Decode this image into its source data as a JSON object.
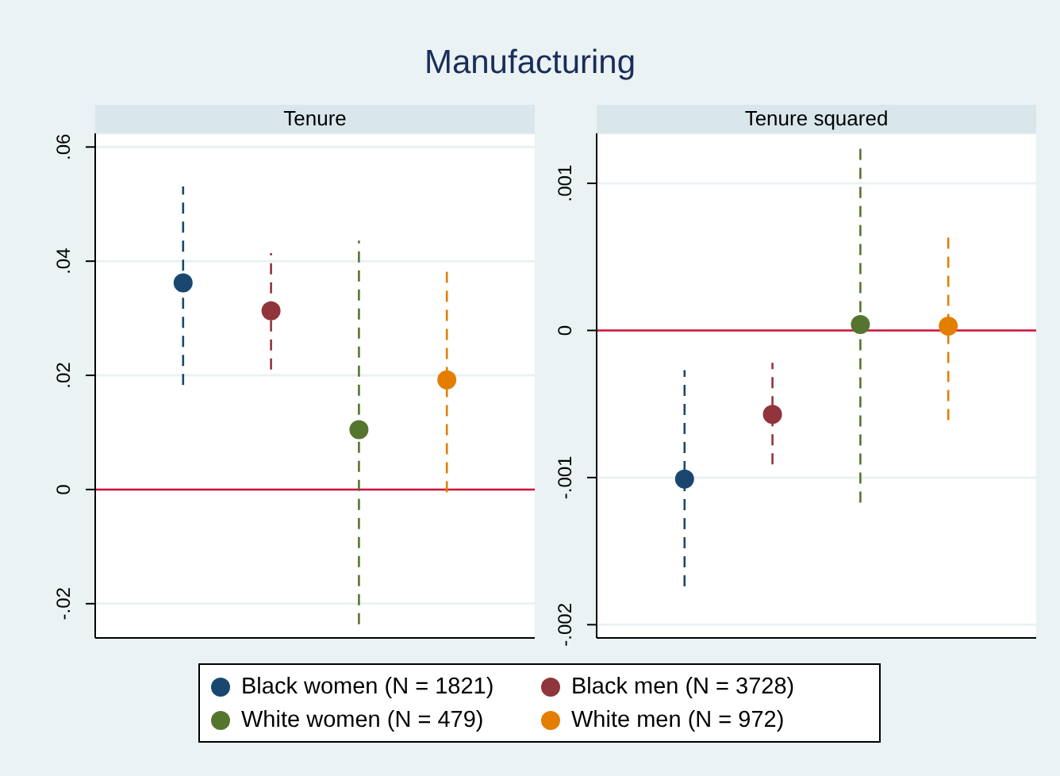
{
  "chart_data": [
    {
      "type": "scatter",
      "title": "Tenure",
      "annotations": [
        "Manufacturing"
      ],
      "categories": [
        null,
        null,
        null,
        null
      ],
      "series": [
        {
          "name": "Black women (N = 1821)",
          "color": "#1a476f",
          "values": [
            0.0362,
            null,
            null,
            null
          ],
          "errors": [
            [
              0.0183,
              0.0531
            ],
            null,
            null,
            null
          ]
        },
        {
          "name": "Black men (N = 3728)",
          "color": "#90353b",
          "values": [
            null,
            0.0313,
            null,
            null
          ],
          "errors": [
            null,
            [
              0.021,
              0.0414
            ],
            null,
            null
          ]
        },
        {
          "name": "White women (N = 479)",
          "color": "#55752f",
          "values": [
            null,
            null,
            0.0105,
            null
          ],
          "errors": [
            null,
            null,
            [
              -0.0236,
              0.0436
            ],
            null
          ]
        },
        {
          "name": "White men (N = 972)",
          "color": "#e37e00",
          "values": [
            null,
            null,
            null,
            0.0192
          ],
          "errors": [
            null,
            null,
            null,
            [
              -0.0005,
              0.0385
            ]
          ]
        }
      ],
      "ylim": [
        -0.026,
        0.0624
      ],
      "yticks": [
        {
          "value": -0.02,
          "label": "-.02"
        },
        0,
        {
          "value": 0.02,
          "label": ".02"
        },
        {
          "value": 0.04,
          "label": ".04"
        },
        {
          "value": 0.06,
          "label": ".06"
        }
      ],
      "ref_lines": [
        {
          "axis": "y",
          "value": 0,
          "color": "#d0103a"
        }
      ],
      "grid": "y",
      "marker": "circle",
      "tick_labels": "y",
      "legend": "bottom"
    },
    {
      "type": "scatter",
      "title": "Tenure squared",
      "categories": [
        null,
        null,
        null,
        null
      ],
      "series": [
        {
          "color": "#1a476f",
          "values": [
            -0.00101,
            null,
            null,
            null
          ],
          "errors": [
            [
              -0.00174,
              -0.00027
            ],
            null,
            null,
            null
          ]
        },
        {
          "color": "#90353b",
          "values": [
            null,
            -0.00057,
            null,
            null
          ],
          "errors": [
            null,
            [
              -0.00091,
              -0.00022
            ],
            null,
            null
          ]
        },
        {
          "color": "#55752f",
          "values": [
            null,
            null,
            4e-05,
            null
          ],
          "errors": [
            null,
            null,
            [
              -0.00117,
              0.00125
            ],
            null
          ]
        },
        {
          "color": "#e37e00",
          "values": [
            null,
            null,
            null,
            3e-05
          ],
          "errors": [
            null,
            null,
            null,
            0.00064
          ]
        }
      ],
      "ylim": [
        -0.00209,
        0.00134
      ],
      "yticks": [
        {
          "value": -0.002,
          "label": "-.002"
        },
        {
          "value": -0.001,
          "label": "-.001"
        },
        0,
        {
          "value": 0.001,
          "label": ".001"
        }
      ],
      "ref_lines": [
        {
          "axis": "y",
          "value": 0,
          "color": "#d0103a"
        }
      ],
      "grid": "y",
      "marker": "circle",
      "tick_labels": "y"
    }
  ]
}
